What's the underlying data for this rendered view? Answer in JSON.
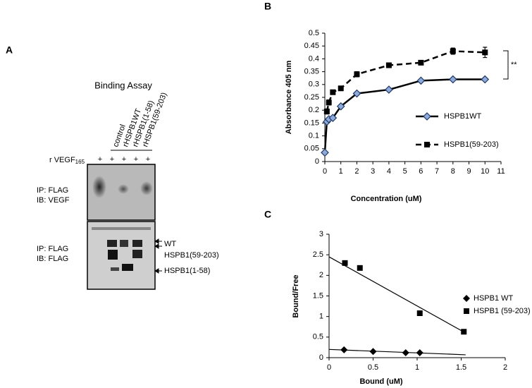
{
  "figure": {
    "panel_a": "A",
    "title": "Binding Assay",
    "lanes": [
      "control",
      "rHSPB1WT",
      "rHSPB1(1-58)",
      "rHSPB1(59-203)"
    ],
    "vegf_label": "r VEGF",
    "vegf_sub": "165",
    "plus": [
      "+",
      "+",
      "+",
      "+",
      "+"
    ],
    "blot1": [
      "IP: FLAG",
      "IB: VEGF"
    ],
    "blot2": [
      "IP: FLAG",
      "IB: FLAG"
    ],
    "bands": [
      "WT",
      "HSPB1(59-203)",
      "HSPB1(1-58)"
    ]
  },
  "chart_data": [
    {
      "type": "line",
      "label": "B",
      "xlabel": "Concentration (uM)",
      "ylabel": "Absorbance 405 nm",
      "xlim": [
        0,
        11
      ],
      "xticks": [
        0,
        1,
        2,
        3,
        4,
        5,
        6,
        7,
        8,
        9,
        10,
        11
      ],
      "ylim": [
        0,
        0.5
      ],
      "yticks": [
        0,
        0.05,
        0.1,
        0.15,
        0.2,
        0.25,
        0.3,
        0.35,
        0.4,
        0.45,
        0.5
      ],
      "annotation": "**",
      "series": [
        {
          "name": "HSPB1WT",
          "color": "#000000",
          "marker": "diamond",
          "marker_color": "#8eaadb",
          "linestyle": "solid",
          "x": [
            0,
            0.125,
            0.25,
            0.5,
            1,
            2,
            4,
            6,
            8,
            10
          ],
          "values": [
            0.035,
            0.155,
            0.165,
            0.17,
            0.215,
            0.265,
            0.28,
            0.315,
            0.32,
            0.32
          ]
        },
        {
          "name": "HSPB1(59-203)",
          "color": "#000000",
          "marker": "square",
          "marker_color": "#000000",
          "linestyle": "dashed",
          "x": [
            0.125,
            0.25,
            0.5,
            1,
            2,
            4,
            6,
            8,
            10
          ],
          "values": [
            0.195,
            0.23,
            0.27,
            0.285,
            0.34,
            0.375,
            0.385,
            0.43,
            0.425
          ],
          "errors": [
            0.01,
            0.01,
            0.005,
            0.005,
            0.01,
            0.003,
            0.003,
            0.012,
            0.02
          ]
        }
      ]
    },
    {
      "type": "scatter",
      "label": "C",
      "xlabel": "Bound (uM)",
      "ylabel": "Bound/Free",
      "xlim": [
        0,
        2
      ],
      "xticks": [
        0,
        0.5,
        1,
        1.5,
        2
      ],
      "ylim": [
        0,
        3
      ],
      "yticks": [
        0,
        0.5,
        1,
        1.5,
        2,
        2.5,
        3
      ],
      "series": [
        {
          "name": "HSPB1 WT",
          "color": "#000000",
          "marker": "diamond",
          "marker_color": "#000000",
          "x": [
            0.17,
            0.5,
            0.87,
            1.03
          ],
          "values": [
            0.19,
            0.15,
            0.12,
            0.12
          ],
          "fit_x": [
            0,
            1.55
          ],
          "fit_y": [
            0.2,
            0.07
          ]
        },
        {
          "name": "HSPB1 (59-203)",
          "color": "#000000",
          "marker": "square",
          "marker_color": "#000000",
          "x": [
            0.18,
            0.35,
            1.03,
            1.53
          ],
          "values": [
            2.3,
            2.18,
            1.08,
            0.63
          ],
          "fit_x": [
            0,
            1.55
          ],
          "fit_y": [
            2.45,
            0.6
          ]
        }
      ]
    }
  ]
}
